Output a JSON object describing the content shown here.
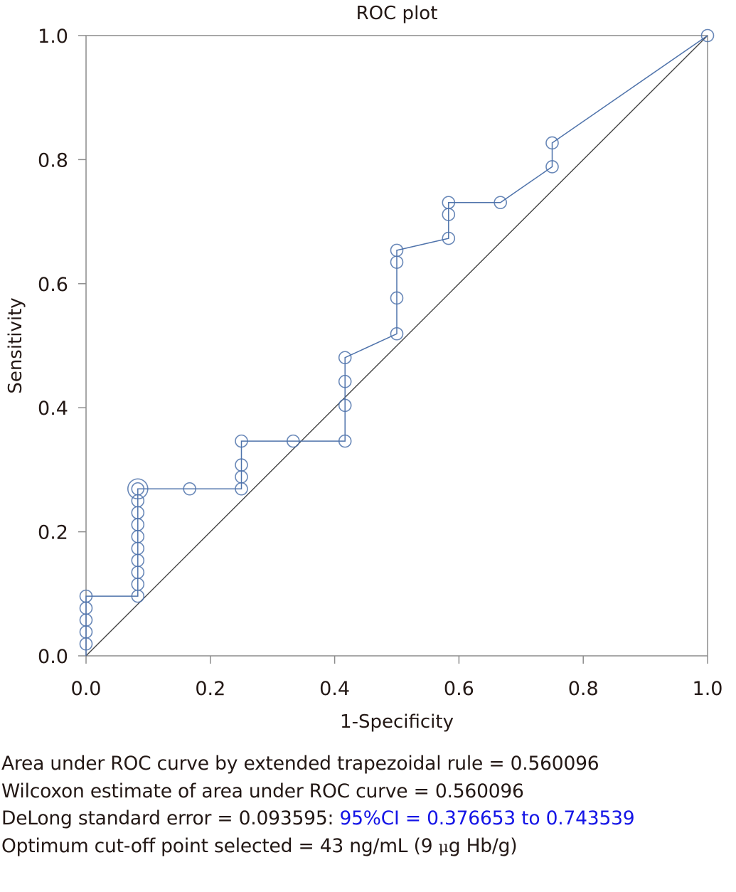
{
  "chart_data": {
    "type": "line",
    "title": "ROC plot",
    "xlabel": "1-Specificity",
    "ylabel": "Sensitivity",
    "xlim": [
      0,
      1
    ],
    "ylim": [
      0,
      1
    ],
    "grid": false,
    "legend": "none",
    "xticks": [
      "0.0",
      "0.2",
      "0.4",
      "0.6",
      "0.8",
      "1.0"
    ],
    "yticks": [
      "0.0",
      "0.2",
      "0.4",
      "0.6",
      "0.8",
      "1.0"
    ],
    "xtick_values": [
      0,
      0.2,
      0.4,
      0.6,
      0.8,
      1.0
    ],
    "ytick_values": [
      0,
      0.2,
      0.4,
      0.6,
      0.8,
      1.0
    ],
    "series": [
      {
        "name": "ROC curve",
        "color": "#4f73ab",
        "marker": "open-circle",
        "x": [
          0,
          0,
          0,
          0,
          0,
          0,
          0.0833,
          0.0833,
          0.0833,
          0.0833,
          0.0833,
          0.0833,
          0.0833,
          0.0833,
          0.0833,
          0.0833,
          0.1667,
          0.25,
          0.25,
          0.25,
          0.25,
          0.3333,
          0.4167,
          0.4167,
          0.4167,
          0.4167,
          0.5,
          0.5,
          0.5,
          0.5,
          0.5833,
          0.5833,
          0.5833,
          0.6667,
          0.75,
          0.75,
          1.0
        ],
        "y": [
          0,
          0.0192,
          0.0385,
          0.0577,
          0.0769,
          0.0962,
          0.0962,
          0.1154,
          0.1346,
          0.1538,
          0.1731,
          0.1923,
          0.2115,
          0.2308,
          0.25,
          0.2692,
          0.2692,
          0.2692,
          0.2885,
          0.3077,
          0.3462,
          0.3462,
          0.3462,
          0.4038,
          0.4423,
          0.4808,
          0.5192,
          0.5769,
          0.6346,
          0.6538,
          0.6731,
          0.7115,
          0.7308,
          0.7308,
          0.7885,
          0.8269,
          1.0
        ],
        "markers_hidden_at": [
          0
        ]
      },
      {
        "name": "Chance line",
        "color": "#444444",
        "marker": "none",
        "x": [
          0,
          1
        ],
        "y": [
          0,
          1
        ]
      }
    ],
    "annotations": [
      {
        "label": "Optimum cut-off point",
        "x": 0.0833,
        "y": 0.2692,
        "marker": "double-circle"
      }
    ]
  },
  "stats": {
    "line1": "Area under ROC curve by extended trapezoidal rule = 0.560096",
    "line2": "Wilcoxon estimate of area under ROC curve = 0.560096",
    "line3_prefix": "DeLong standard error = 0.093595: ",
    "line3_ci": "95%CI = 0.376653 to 0.743539",
    "line4_prefix": "Optimum cut-off point selected = 43 ng/mL (9 ",
    "line4_mu": "μ",
    "line4_suffix": "g Hb/g)",
    "ci_color": "#1414e6"
  }
}
